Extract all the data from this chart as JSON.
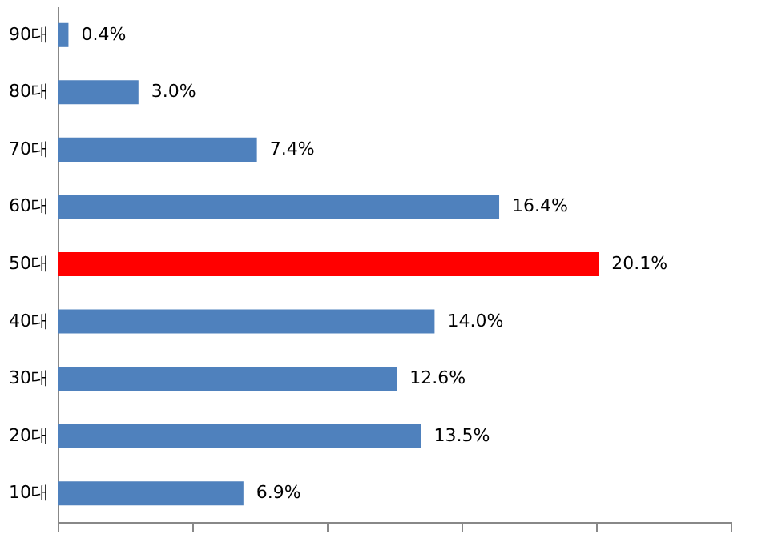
{
  "chart_data": {
    "type": "bar",
    "orientation": "horizontal",
    "categories": [
      "90대",
      "80대",
      "70대",
      "60대",
      "50대",
      "40대",
      "30대",
      "20대",
      "10대"
    ],
    "values": [
      0.4,
      3.0,
      7.4,
      16.4,
      20.1,
      14.0,
      12.6,
      13.5,
      6.9
    ],
    "value_labels": [
      "0.4%",
      "3.0%",
      "7.4%",
      "16.4%",
      "20.1%",
      "14.0%",
      "12.6%",
      "13.5%",
      "6.9%"
    ],
    "colors": [
      "#4f81bd",
      "#4f81bd",
      "#4f81bd",
      "#4f81bd",
      "#ff0000",
      "#4f81bd",
      "#4f81bd",
      "#4f81bd",
      "#4f81bd"
    ],
    "xlim": [
      0,
      25
    ],
    "xticks": [
      {
        "value": 0,
        "label": null
      },
      {
        "value": 5,
        "label": null
      },
      {
        "value": 10,
        "label": null
      },
      {
        "value": 15,
        "label": null
      },
      {
        "value": 20,
        "label": null
      },
      {
        "value": 25,
        "label": null
      }
    ],
    "tick_labels": "y",
    "grid": false
  }
}
